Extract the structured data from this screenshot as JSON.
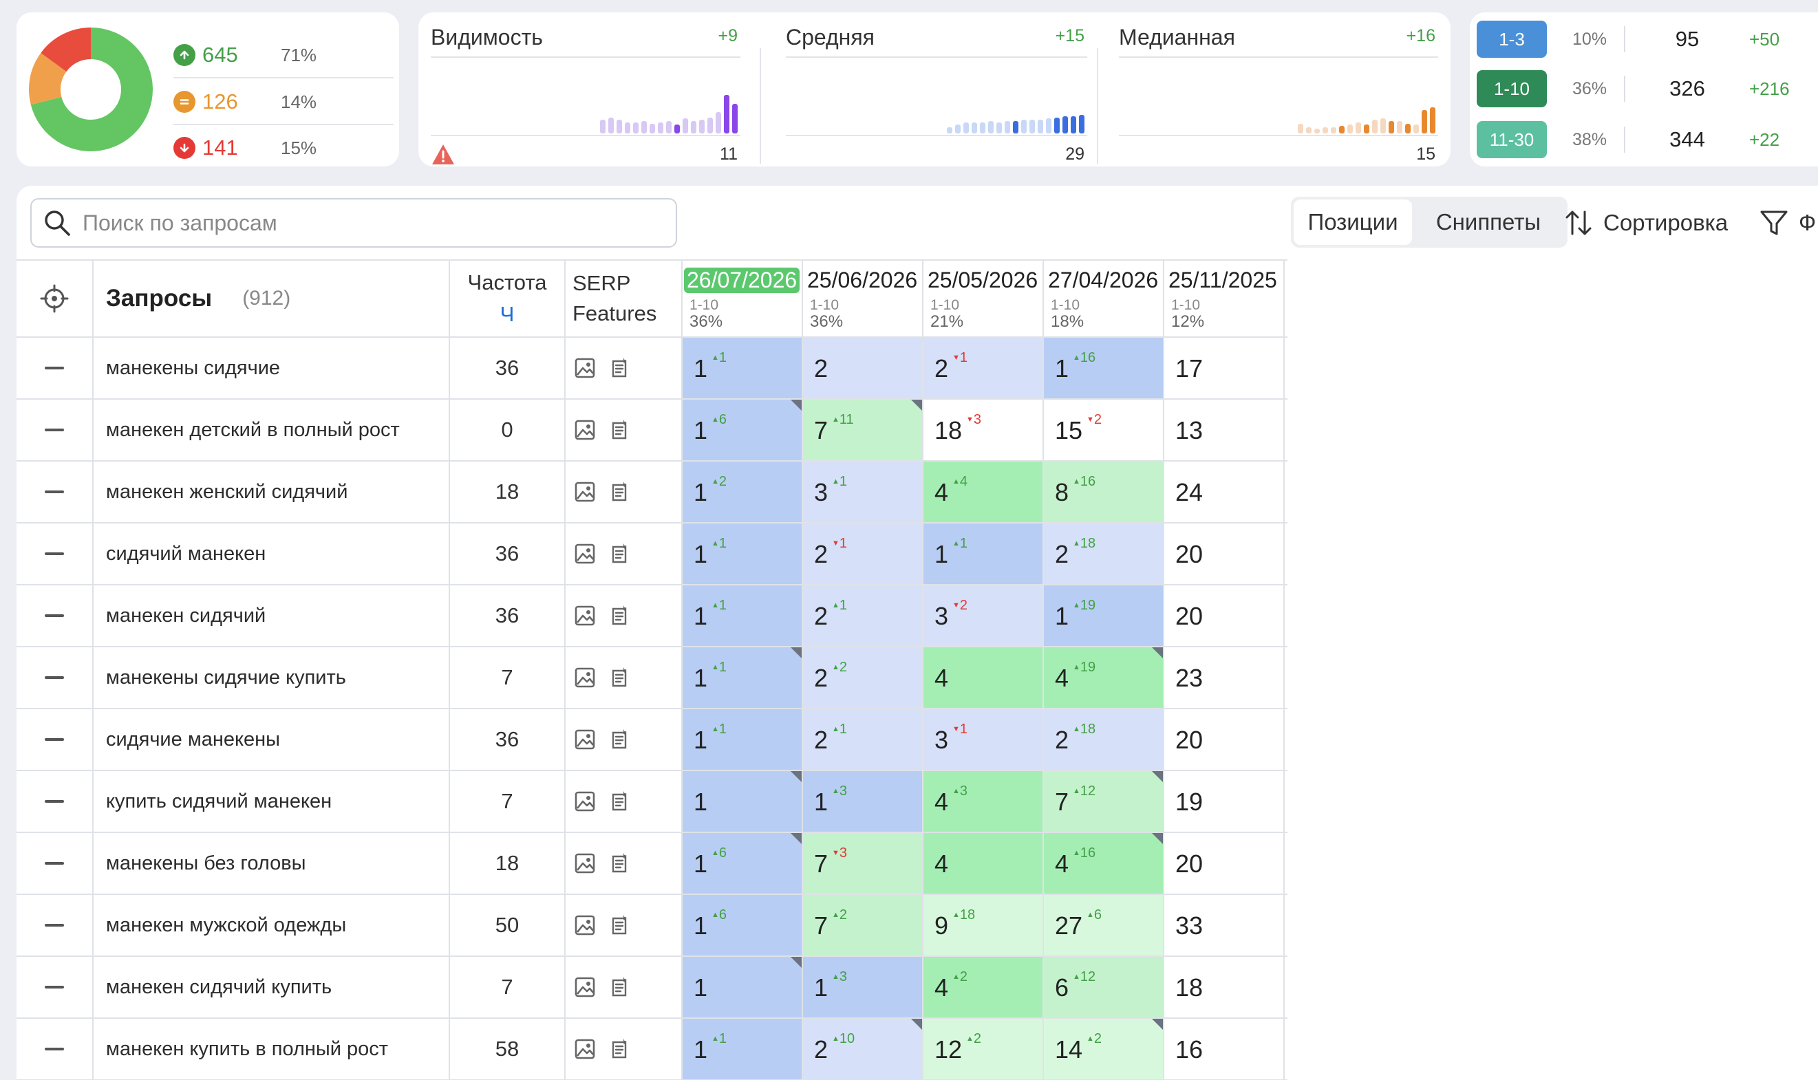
{
  "summary": {
    "items": [
      {
        "value": "645",
        "pct": "71%",
        "color": "#43a047",
        "icon": "arrow-up-circle-icon"
      },
      {
        "value": "126",
        "pct": "14%",
        "color": "#e8962e",
        "icon": "equal-circle-icon"
      },
      {
        "value": "141",
        "pct": "15%",
        "color": "#e53935",
        "icon": "arrow-down-circle-icon"
      }
    ],
    "donut": [
      {
        "fraction": 0.71,
        "color": "#63c663"
      },
      {
        "fraction": 0.14,
        "color": "#f0a04b"
      },
      {
        "fraction": 0.15,
        "color": "#e84c3d"
      }
    ]
  },
  "metrics": [
    {
      "title": "Видимость",
      "delta": "+9",
      "value": "11",
      "bars": [
        0.22,
        0.26,
        0.22,
        0.18,
        0.18,
        0.2,
        0.16,
        0.18,
        0.2,
        0.14,
        0.24,
        0.2,
        0.22,
        0.26,
        0.34,
        0.62,
        0.48
      ],
      "highlight": [
        9,
        15,
        16
      ],
      "colors": {
        "light": "#d8c8f4",
        "dark": "#8a46e8"
      },
      "warning": true
    },
    {
      "title": "Средняя",
      "delta": "+15",
      "value": "29",
      "bars": [
        0.1,
        0.14,
        0.18,
        0.18,
        0.18,
        0.2,
        0.18,
        0.2,
        0.2,
        0.22,
        0.22,
        0.22,
        0.24,
        0.26,
        0.28,
        0.28,
        0.3
      ],
      "highlight": [
        8,
        13,
        14,
        15,
        16
      ],
      "colors": {
        "light": "#c8d8f6",
        "dark": "#3a6ee0"
      },
      "warning": false
    },
    {
      "title": "Медианная",
      "delta": "+16",
      "value": "15",
      "bars": [
        0.16,
        0.1,
        0.08,
        0.1,
        0.1,
        0.12,
        0.14,
        0.18,
        0.14,
        0.22,
        0.24,
        0.2,
        0.2,
        0.16,
        0.14,
        0.38,
        0.42
      ],
      "highlight": [
        5,
        8,
        11,
        13,
        15,
        16
      ],
      "colors": {
        "light": "#f6d8c0",
        "dark": "#e8882e"
      },
      "warning": false
    }
  ],
  "ranges": [
    {
      "label": "1-3",
      "pct": "10%",
      "count": "95",
      "delta": "+50",
      "color": "#4a90d9"
    },
    {
      "label": "1-10",
      "pct": "36%",
      "count": "326",
      "delta": "+216",
      "color": "#2e8b57"
    },
    {
      "label": "11-30",
      "pct": "38%",
      "count": "344",
      "delta": "+22",
      "color": "#5cc0a0"
    }
  ],
  "toolbar": {
    "search_placeholder": "Поиск по запросам",
    "tab_positions": "Позиции",
    "tab_snippets": "Сниппеты",
    "sort_label": "Сортировка",
    "filter_label": "Ф"
  },
  "table": {
    "header": {
      "queries_label": "Запросы",
      "queries_count": "(912)",
      "freq_label": "Частота",
      "freq_unit": "Ч",
      "serp_line1": "SERP",
      "serp_line2": "Features"
    },
    "dates": [
      {
        "date": "26/07/2026",
        "range": "1-10",
        "pct": "36%",
        "active": true
      },
      {
        "date": "25/06/2026",
        "range": "1-10",
        "pct": "36%",
        "active": false
      },
      {
        "date": "25/05/2026",
        "range": "1-10",
        "pct": "21%",
        "active": false
      },
      {
        "date": "27/04/2026",
        "range": "1-10",
        "pct": "18%",
        "active": false
      },
      {
        "date": "25/11/2025",
        "range": "1-10",
        "pct": "12%",
        "active": false
      }
    ],
    "rows": [
      {
        "query": "манекены сидячие",
        "freq": "36",
        "cells": [
          {
            "pos": "1",
            "chg": "1",
            "dir": "up",
            "bg": "#b8cdf4",
            "flag": false
          },
          {
            "pos": "2",
            "chg": "",
            "dir": "",
            "bg": "#d6e0f8",
            "flag": false
          },
          {
            "pos": "2",
            "chg": "1",
            "dir": "down",
            "bg": "#d6e0f8",
            "flag": false
          },
          {
            "pos": "1",
            "chg": "16",
            "dir": "up",
            "bg": "#b8cdf4",
            "flag": false
          },
          {
            "pos": "17",
            "chg": "",
            "dir": "",
            "bg": "#ffffff",
            "flag": false
          }
        ]
      },
      {
        "query": "манекен детский в полный рост",
        "freq": "0",
        "cells": [
          {
            "pos": "1",
            "chg": "6",
            "dir": "up",
            "bg": "#b8cdf4",
            "flag": true
          },
          {
            "pos": "7",
            "chg": "11",
            "dir": "up",
            "bg": "#c4f2cc",
            "flag": true
          },
          {
            "pos": "18",
            "chg": "3",
            "dir": "down",
            "bg": "#ffffff",
            "flag": false
          },
          {
            "pos": "15",
            "chg": "2",
            "dir": "down",
            "bg": "#ffffff",
            "flag": false
          },
          {
            "pos": "13",
            "chg": "",
            "dir": "",
            "bg": "#ffffff",
            "flag": false
          }
        ]
      },
      {
        "query": "манекен женский сидячий",
        "freq": "18",
        "cells": [
          {
            "pos": "1",
            "chg": "2",
            "dir": "up",
            "bg": "#b8cdf4",
            "flag": false
          },
          {
            "pos": "3",
            "chg": "1",
            "dir": "up",
            "bg": "#d6e0f8",
            "flag": false
          },
          {
            "pos": "4",
            "chg": "4",
            "dir": "up",
            "bg": "#a4eeb4",
            "flag": false
          },
          {
            "pos": "8",
            "chg": "16",
            "dir": "up",
            "bg": "#c4f2cc",
            "flag": false
          },
          {
            "pos": "24",
            "chg": "",
            "dir": "",
            "bg": "#ffffff",
            "flag": false
          }
        ]
      },
      {
        "query": "сидячий манекен",
        "freq": "36",
        "cells": [
          {
            "pos": "1",
            "chg": "1",
            "dir": "up",
            "bg": "#b8cdf4",
            "flag": false
          },
          {
            "pos": "2",
            "chg": "1",
            "dir": "down",
            "bg": "#d6e0f8",
            "flag": false
          },
          {
            "pos": "1",
            "chg": "1",
            "dir": "up",
            "bg": "#b8cdf4",
            "flag": false
          },
          {
            "pos": "2",
            "chg": "18",
            "dir": "up",
            "bg": "#d6e0f8",
            "flag": false
          },
          {
            "pos": "20",
            "chg": "",
            "dir": "",
            "bg": "#ffffff",
            "flag": false
          }
        ]
      },
      {
        "query": "манекен сидячий",
        "freq": "36",
        "cells": [
          {
            "pos": "1",
            "chg": "1",
            "dir": "up",
            "bg": "#b8cdf4",
            "flag": false
          },
          {
            "pos": "2",
            "chg": "1",
            "dir": "up",
            "bg": "#d6e0f8",
            "flag": false
          },
          {
            "pos": "3",
            "chg": "2",
            "dir": "down",
            "bg": "#d6e0f8",
            "flag": false
          },
          {
            "pos": "1",
            "chg": "19",
            "dir": "up",
            "bg": "#b8cdf4",
            "flag": false
          },
          {
            "pos": "20",
            "chg": "",
            "dir": "",
            "bg": "#ffffff",
            "flag": false
          }
        ]
      },
      {
        "query": "манекены сидячие купить",
        "freq": "7",
        "cells": [
          {
            "pos": "1",
            "chg": "1",
            "dir": "up",
            "bg": "#b8cdf4",
            "flag": true
          },
          {
            "pos": "2",
            "chg": "2",
            "dir": "up",
            "bg": "#d6e0f8",
            "flag": false
          },
          {
            "pos": "4",
            "chg": "",
            "dir": "",
            "bg": "#a4eeb4",
            "flag": false
          },
          {
            "pos": "4",
            "chg": "19",
            "dir": "up",
            "bg": "#a4eeb4",
            "flag": true
          },
          {
            "pos": "23",
            "chg": "",
            "dir": "",
            "bg": "#ffffff",
            "flag": false
          }
        ]
      },
      {
        "query": "сидячие манекены",
        "freq": "36",
        "cells": [
          {
            "pos": "1",
            "chg": "1",
            "dir": "up",
            "bg": "#b8cdf4",
            "flag": false
          },
          {
            "pos": "2",
            "chg": "1",
            "dir": "up",
            "bg": "#d6e0f8",
            "flag": false
          },
          {
            "pos": "3",
            "chg": "1",
            "dir": "down",
            "bg": "#d6e0f8",
            "flag": false
          },
          {
            "pos": "2",
            "chg": "18",
            "dir": "up",
            "bg": "#d6e0f8",
            "flag": false
          },
          {
            "pos": "20",
            "chg": "",
            "dir": "",
            "bg": "#ffffff",
            "flag": false
          }
        ]
      },
      {
        "query": "купить сидячий манекен",
        "freq": "7",
        "cells": [
          {
            "pos": "1",
            "chg": "",
            "dir": "",
            "bg": "#b8cdf4",
            "flag": true
          },
          {
            "pos": "1",
            "chg": "3",
            "dir": "up",
            "bg": "#b8cdf4",
            "flag": false
          },
          {
            "pos": "4",
            "chg": "3",
            "dir": "up",
            "bg": "#a4eeb4",
            "flag": false
          },
          {
            "pos": "7",
            "chg": "12",
            "dir": "up",
            "bg": "#c4f2cc",
            "flag": true
          },
          {
            "pos": "19",
            "chg": "",
            "dir": "",
            "bg": "#ffffff",
            "flag": false
          }
        ]
      },
      {
        "query": "манекены без головы",
        "freq": "18",
        "cells": [
          {
            "pos": "1",
            "chg": "6",
            "dir": "up",
            "bg": "#b8cdf4",
            "flag": true
          },
          {
            "pos": "7",
            "chg": "3",
            "dir": "down",
            "bg": "#c4f2cc",
            "flag": false
          },
          {
            "pos": "4",
            "chg": "",
            "dir": "",
            "bg": "#a4eeb4",
            "flag": false
          },
          {
            "pos": "4",
            "chg": "16",
            "dir": "up",
            "bg": "#a4eeb4",
            "flag": true
          },
          {
            "pos": "20",
            "chg": "",
            "dir": "",
            "bg": "#ffffff",
            "flag": false
          }
        ]
      },
      {
        "query": "манекен мужской одежды",
        "freq": "50",
        "cells": [
          {
            "pos": "1",
            "chg": "6",
            "dir": "up",
            "bg": "#b8cdf4",
            "flag": false
          },
          {
            "pos": "7",
            "chg": "2",
            "dir": "up",
            "bg": "#c4f2cc",
            "flag": false
          },
          {
            "pos": "9",
            "chg": "18",
            "dir": "up",
            "bg": "#d8f8dd",
            "flag": false
          },
          {
            "pos": "27",
            "chg": "6",
            "dir": "up",
            "bg": "#d8f8dd",
            "flag": false
          },
          {
            "pos": "33",
            "chg": "",
            "dir": "",
            "bg": "#ffffff",
            "flag": false
          }
        ]
      },
      {
        "query": "манекен сидячий купить",
        "freq": "7",
        "cells": [
          {
            "pos": "1",
            "chg": "",
            "dir": "",
            "bg": "#b8cdf4",
            "flag": true
          },
          {
            "pos": "1",
            "chg": "3",
            "dir": "up",
            "bg": "#b8cdf4",
            "flag": false
          },
          {
            "pos": "4",
            "chg": "2",
            "dir": "up",
            "bg": "#a4eeb4",
            "flag": false
          },
          {
            "pos": "6",
            "chg": "12",
            "dir": "up",
            "bg": "#c4f2cc",
            "flag": false
          },
          {
            "pos": "18",
            "chg": "",
            "dir": "",
            "bg": "#ffffff",
            "flag": false
          }
        ]
      },
      {
        "query": "манекен купить в полный рост",
        "freq": "58",
        "cells": [
          {
            "pos": "1",
            "chg": "1",
            "dir": "up",
            "bg": "#b8cdf4",
            "flag": false
          },
          {
            "pos": "2",
            "chg": "10",
            "dir": "up",
            "bg": "#d6e0f8",
            "flag": true
          },
          {
            "pos": "12",
            "chg": "2",
            "dir": "up",
            "bg": "#d8f8dd",
            "flag": false
          },
          {
            "pos": "14",
            "chg": "2",
            "dir": "up",
            "bg": "#d8f8dd",
            "flag": true
          },
          {
            "pos": "16",
            "chg": "",
            "dir": "",
            "bg": "#ffffff",
            "flag": false
          }
        ]
      }
    ]
  }
}
